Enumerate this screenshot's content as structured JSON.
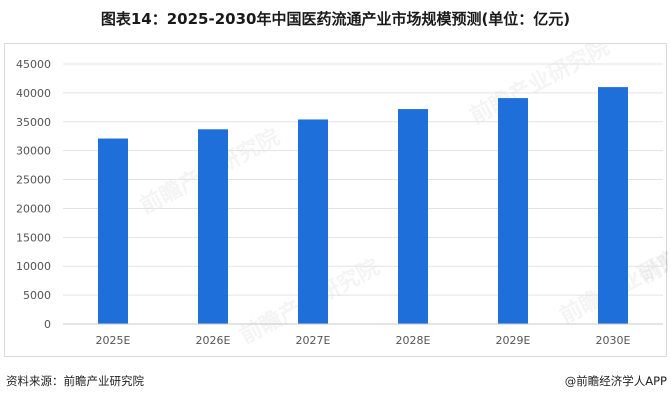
{
  "title": "图表14：2025-2030年中国医药流通产业市场规模预测(单位：亿元)",
  "source": "资料来源：前瞻产业研究院",
  "credit": "@前瞻经济学人APP",
  "watermark": "前瞻产业研究院",
  "colors": {
    "bar": "#1e6fd9",
    "grid": "#e3e3e3",
    "axis": "#c8c8c8"
  },
  "chart_data": {
    "type": "bar",
    "title": "图表14：2025-2030年中国医药流通产业市场规模预测(单位：亿元)",
    "xlabel": "",
    "ylabel": "",
    "categories": [
      "2025E",
      "2026E",
      "2027E",
      "2028E",
      "2029E",
      "2030E"
    ],
    "values": [
      32100,
      33700,
      35400,
      37200,
      39100,
      41000
    ],
    "ylim": [
      0,
      45000
    ],
    "yticks": [
      0,
      5000,
      10000,
      15000,
      20000,
      25000,
      30000,
      35000,
      40000,
      45000
    ],
    "grid": true,
    "legend": "none"
  }
}
